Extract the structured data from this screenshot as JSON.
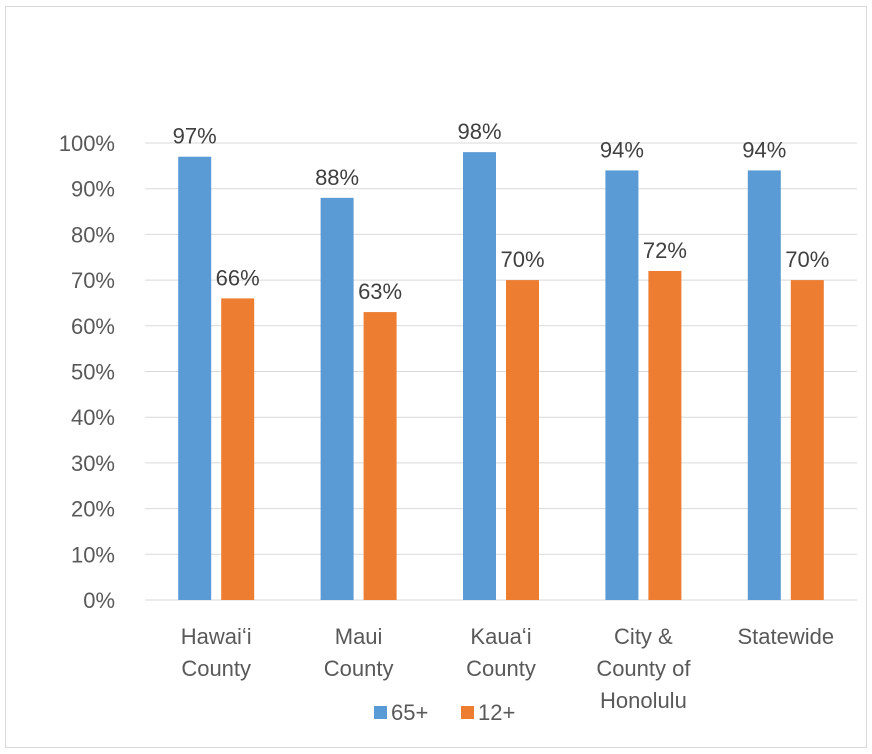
{
  "chart_data": {
    "type": "bar",
    "title": "",
    "xlabel": "",
    "ylabel": "",
    "ylim": [
      0,
      100
    ],
    "yticks": [
      "0%",
      "10%",
      "20%",
      "30%",
      "40%",
      "50%",
      "60%",
      "70%",
      "80%",
      "90%",
      "100%"
    ],
    "grid": true,
    "legend_position": "bottom",
    "categories": [
      [
        "Hawaiʻi",
        "County"
      ],
      [
        "Maui",
        "County"
      ],
      [
        "Kauaʻi",
        "County"
      ],
      [
        "City &",
        "County of",
        "Honolulu"
      ],
      [
        "Statewide"
      ]
    ],
    "series": [
      {
        "name": "65+",
        "color": "#5b9bd5",
        "values": [
          97,
          88,
          98,
          94,
          94
        ],
        "labels": [
          "97%",
          "88%",
          "98%",
          "94%",
          "94%"
        ]
      },
      {
        "name": "12+",
        "color": "#ed7d31",
        "values": [
          66,
          63,
          70,
          72,
          70
        ],
        "labels": [
          "66%",
          "63%",
          "70%",
          "72%",
          "70%"
        ]
      }
    ]
  }
}
